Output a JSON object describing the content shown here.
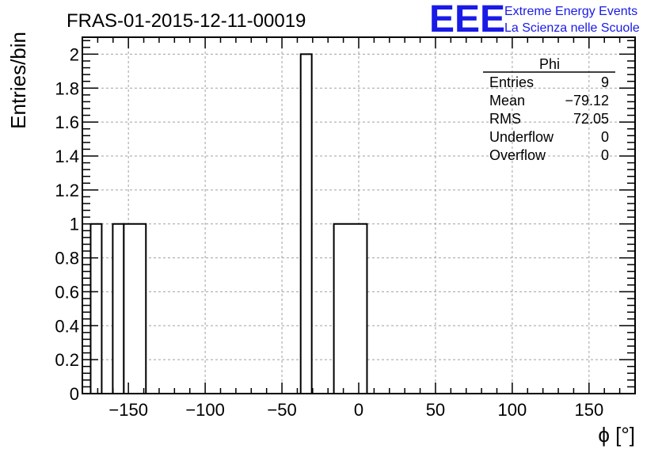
{
  "title": "FRAS-01-2015-12-11-00019",
  "logo": {
    "mark": "EEE",
    "line1": "Extreme Energy Events",
    "line2": "La Scienza nelle Scuole",
    "color": "#1a1ae6"
  },
  "stats": {
    "name": "Phi",
    "rows": [
      {
        "label": "Entries",
        "value": "9"
      },
      {
        "label": "Mean",
        "value": "−79.12"
      },
      {
        "label": "RMS",
        "value": "72.05"
      },
      {
        "label": "Underflow",
        "value": "0"
      },
      {
        "label": "Overflow",
        "value": "0"
      }
    ]
  },
  "chart_data": {
    "type": "bar",
    "xlabel": "ϕ [°]",
    "ylabel": "Entries/bin",
    "xlim": [
      -180,
      180
    ],
    "ylim": [
      0,
      2.1
    ],
    "grid": true,
    "x_ticks": [
      -150,
      -100,
      -50,
      0,
      50,
      100,
      150
    ],
    "x_tick_labels": [
      "−150",
      "−100",
      "−50",
      "0",
      "50",
      "100",
      "150"
    ],
    "y_ticks": [
      0,
      0.2,
      0.4,
      0.6,
      0.8,
      1,
      1.2,
      1.4,
      1.6,
      1.8,
      2
    ],
    "y_tick_labels": [
      "0",
      "0.2",
      "0.4",
      "0.6",
      "0.8",
      "1",
      "1.2",
      "1.4",
      "1.6",
      "1.8",
      "2"
    ],
    "bins": [
      {
        "x0": -174.6,
        "x1": -167.4,
        "value": 1
      },
      {
        "x0": -167.4,
        "x1": -160.2,
        "value": 0
      },
      {
        "x0": -160.2,
        "x1": -153.0,
        "value": 1
      },
      {
        "x0": -153.0,
        "x1": -138.6,
        "value": 1
      },
      {
        "x0": -37.8,
        "x1": -30.6,
        "value": 2
      },
      {
        "x0": -16.2,
        "x1": 5.4,
        "value": 1
      }
    ]
  }
}
